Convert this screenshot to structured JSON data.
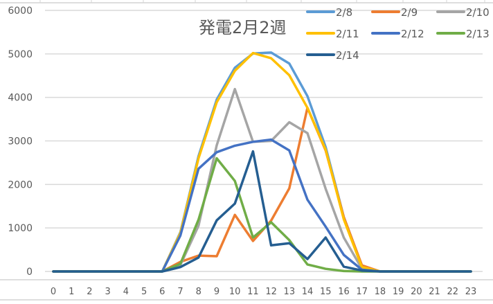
{
  "chart_data": {
    "type": "line",
    "title": "発電2月2週",
    "xlabel": "",
    "ylabel": "",
    "ylim": [
      0,
      6000
    ],
    "yticks": [
      0,
      1000,
      2000,
      3000,
      4000,
      5000,
      6000
    ],
    "grid": true,
    "legend_position": "top-right",
    "categories": [
      "0",
      "1",
      "2",
      "3",
      "4",
      "5",
      "6",
      "7",
      "8",
      "9",
      "10",
      "11",
      "12",
      "13",
      "14",
      "15",
      "16",
      "17",
      "18",
      "19",
      "20",
      "21",
      "22",
      "23"
    ],
    "series": [
      {
        "name": "2/8",
        "color": "#5B9BD5",
        "values": [
          0,
          0,
          0,
          0,
          0,
          0,
          0,
          900,
          2650,
          3950,
          4680,
          5010,
          5030,
          4780,
          4030,
          2860,
          1250,
          130,
          0,
          0,
          0,
          0,
          0,
          0
        ]
      },
      {
        "name": "2/9",
        "color": "#ED7D31",
        "values": [
          0,
          0,
          0,
          0,
          0,
          0,
          0,
          220,
          365,
          350,
          1300,
          700,
          1170,
          1910,
          3760,
          2780,
          1250,
          140,
          0,
          0,
          0,
          0,
          0,
          0
        ]
      },
      {
        "name": "2/10",
        "color": "#A5A5A5",
        "values": [
          0,
          0,
          0,
          0,
          0,
          0,
          0,
          150,
          1050,
          2900,
          4190,
          2980,
          3000,
          3430,
          3180,
          1900,
          780,
          60,
          0,
          0,
          0,
          0,
          0,
          0
        ]
      },
      {
        "name": "2/11",
        "color": "#FFC000",
        "values": [
          0,
          0,
          0,
          0,
          0,
          0,
          0,
          880,
          2600,
          3890,
          4610,
          5020,
          4900,
          4510,
          3760,
          2800,
          1200,
          100,
          0,
          0,
          0,
          0,
          0,
          0
        ]
      },
      {
        "name": "2/12",
        "color": "#4472C4",
        "values": [
          0,
          0,
          0,
          0,
          0,
          0,
          0,
          825,
          2360,
          2740,
          2890,
          2980,
          3030,
          2780,
          1650,
          1030,
          380,
          40,
          0,
          0,
          0,
          0,
          0,
          0
        ]
      },
      {
        "name": "2/13",
        "color": "#70AD47",
        "values": [
          0,
          0,
          0,
          0,
          0,
          0,
          0,
          175,
          1190,
          2600,
          2080,
          780,
          1130,
          720,
          160,
          60,
          10,
          0,
          0,
          0,
          0,
          0,
          0,
          0
        ]
      },
      {
        "name": "2/14",
        "color": "#255E91",
        "values": [
          0,
          0,
          0,
          0,
          0,
          0,
          0,
          100,
          320,
          1175,
          1560,
          2760,
          600,
          650,
          285,
          780,
          110,
          20,
          0,
          0,
          0,
          0,
          0,
          0
        ]
      }
    ]
  },
  "colors": {
    "gridline": "#D9D9D9",
    "axis_text": "#595959",
    "title_text": "#595959",
    "sheet_line": "#D4D4D4"
  }
}
